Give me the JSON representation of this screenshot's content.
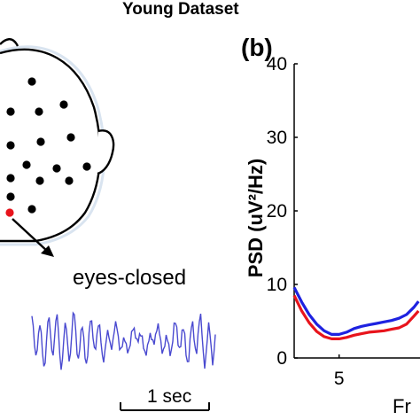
{
  "figure": {
    "title": "Young Dataset",
    "panel_label": "(b)"
  },
  "scalp": {
    "electrode_color": "#000000",
    "highlight_color": "#e8141c",
    "waveform_label": "eyes-closed",
    "waveform_color": "#4a4ad0",
    "scale_bar_label": "1 sec"
  },
  "chart_data": {
    "type": "line",
    "ylabel": "PSD (uV²/Hz)",
    "xlabel": "Fr",
    "ylim": [
      0,
      40
    ],
    "yticks": [
      0,
      10,
      20,
      30,
      40
    ],
    "xlim": [
      2,
      10.4
    ],
    "xticks": [
      5
    ],
    "series": [
      {
        "color": "#1e22e0",
        "x": [
          2,
          2.5,
          3,
          3.5,
          4,
          4.5,
          5,
          5.5,
          6,
          6.5,
          7,
          7.5,
          8,
          8.5,
          9,
          9.5,
          10,
          10.3
        ],
        "values": [
          9.6,
          7.6,
          5.9,
          4.6,
          3.7,
          3.2,
          3.2,
          3.5,
          4.0,
          4.3,
          4.5,
          4.7,
          4.9,
          5.1,
          5.4,
          5.9,
          6.9,
          7.7
        ]
      },
      {
        "color": "#e8141c",
        "x": [
          2,
          2.5,
          3,
          3.5,
          4,
          4.5,
          5,
          5.5,
          6,
          6.5,
          7,
          7.5,
          8,
          8.5,
          9,
          9.5,
          10,
          10.3
        ],
        "values": [
          8.5,
          6.4,
          4.8,
          3.6,
          2.9,
          2.6,
          2.6,
          2.8,
          3.1,
          3.3,
          3.5,
          3.6,
          3.7,
          3.9,
          4.1,
          4.6,
          5.7,
          6.4
        ]
      }
    ]
  }
}
